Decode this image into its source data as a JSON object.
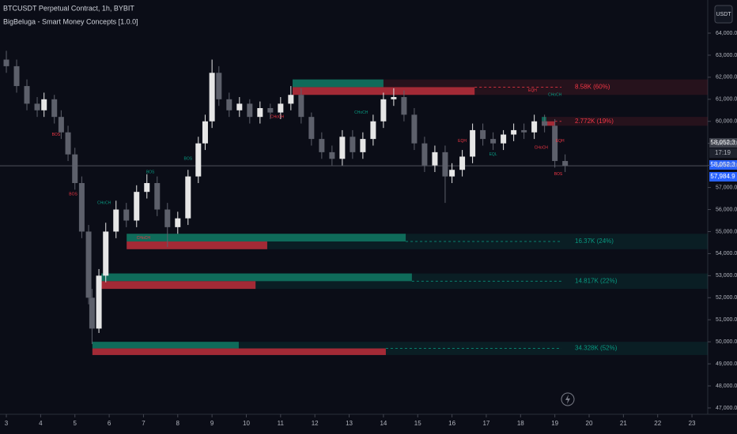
{
  "chart_data": {
    "type": "candlestick",
    "title": "BTCUSDT Perpetual Contract, 1h, BYBIT",
    "subtitle": "BigBeluga - Smart Money Concepts [1.0.0]",
    "currency_button": "USDT",
    "xlim": [
      2.815,
      23.46
    ],
    "xticks": [
      3,
      4,
      5,
      6,
      7,
      8,
      9,
      10,
      11,
      12,
      13,
      14,
      15,
      16,
      17,
      18,
      19,
      20,
      21,
      22,
      23
    ],
    "ylim": [
      46713,
      65503
    ],
    "yticks": [
      {
        "value": 47000,
        "label": "47,000.0"
      },
      {
        "value": 48000,
        "label": "48,000.0"
      },
      {
        "value": 49000,
        "label": "49,000.0"
      },
      {
        "value": 50000,
        "label": "50,000.0"
      },
      {
        "value": 51000,
        "label": "51,000.0"
      },
      {
        "value": 52000,
        "label": "52,000.0"
      },
      {
        "value": 53000,
        "label": "53,000.0"
      },
      {
        "value": 54000,
        "label": "54,000.0"
      },
      {
        "value": 55000,
        "label": "55,000.0"
      },
      {
        "value": 56000,
        "label": "56,000.0"
      },
      {
        "value": 57000,
        "label": "57,000.0"
      },
      {
        "value": 58000,
        "label": "58,000.0"
      },
      {
        "value": 59000,
        "label": "59,000.0"
      },
      {
        "value": 60000,
        "label": "60,000.0"
      },
      {
        "value": 61000,
        "label": "61,000.0"
      },
      {
        "value": 62000,
        "label": "62,000.0"
      },
      {
        "value": 63000,
        "label": "63,000.0"
      },
      {
        "value": 64000,
        "label": "64,000.0"
      }
    ],
    "up_color": "#e6e6e6",
    "down_color": "#5d606b",
    "candles": {
      "x": [
        3.0,
        3.3,
        3.6,
        3.9,
        4.1,
        4.4,
        4.6,
        4.8,
        5.0,
        5.2,
        5.4,
        5.5,
        5.7,
        5.9,
        6.2,
        6.5,
        6.8,
        7.1,
        7.4,
        7.7,
        8.0,
        8.3,
        8.6,
        8.8,
        9.0,
        9.2,
        9.5,
        9.8,
        10.1,
        10.4,
        10.7,
        11.0,
        11.3,
        11.6,
        11.9,
        12.2,
        12.5,
        12.8,
        13.1,
        13.4,
        13.7,
        14.0,
        14.3,
        14.6,
        14.9,
        15.2,
        15.5,
        15.8,
        16.0,
        16.3,
        16.6,
        16.9,
        17.2,
        17.5,
        17.8,
        18.1,
        18.4,
        18.7,
        19.0,
        19.3
      ],
      "open": [
        62800,
        62500,
        61600,
        60800,
        60500,
        61000,
        60200,
        59500,
        58500,
        57200,
        55000,
        52000,
        50600,
        53000,
        55000,
        56000,
        55500,
        56800,
        57200,
        56000,
        55200,
        55600,
        57500,
        59000,
        60000,
        62200,
        61000,
        60500,
        60800,
        60200,
        60600,
        60400,
        60800,
        61200,
        60200,
        59200,
        58600,
        58300,
        59300,
        58600,
        59200,
        60000,
        61000,
        61100,
        60300,
        59000,
        58000,
        58600,
        57500,
        57800,
        58400,
        59600,
        59200,
        59000,
        59400,
        59600,
        59500,
        60000,
        59800,
        58200
      ],
      "high": [
        63200,
        62800,
        61900,
        61100,
        61300,
        61200,
        60500,
        59800,
        58800,
        57500,
        55300,
        52400,
        53300,
        55400,
        56400,
        56300,
        57100,
        57600,
        57500,
        56300,
        55900,
        57800,
        59300,
        60300,
        62800,
        62500,
        61300,
        61100,
        61000,
        60900,
        60800,
        61100,
        61600,
        61500,
        60400,
        59500,
        58900,
        59600,
        59600,
        59500,
        60300,
        61300,
        61500,
        61400,
        60600,
        59300,
        58900,
        58900,
        58100,
        58700,
        59900,
        59900,
        59500,
        59600,
        59900,
        59900,
        60300,
        60300,
        60100,
        58500
      ],
      "low": [
        62200,
        61300,
        60500,
        60200,
        60200,
        59900,
        59200,
        58200,
        56900,
        54700,
        51700,
        49900,
        50400,
        52700,
        54700,
        55200,
        55200,
        56500,
        55700,
        54300,
        54900,
        55300,
        57200,
        58700,
        59700,
        60700,
        60200,
        60200,
        59900,
        59900,
        60100,
        60100,
        60500,
        59900,
        58900,
        58300,
        58000,
        58000,
        58300,
        58300,
        58900,
        59700,
        60700,
        60000,
        58700,
        57700,
        57700,
        56300,
        57200,
        57500,
        58100,
        58900,
        58700,
        58700,
        59100,
        59200,
        59200,
        59500,
        57900,
        57700
      ],
      "close": [
        62500,
        61600,
        60800,
        60500,
        61000,
        60200,
        59500,
        58500,
        57200,
        55000,
        52000,
        50600,
        53000,
        55000,
        56000,
        55500,
        56800,
        57200,
        56000,
        55200,
        55600,
        57500,
        59000,
        60000,
        62200,
        61000,
        60500,
        60800,
        60200,
        60600,
        60400,
        60800,
        61200,
        60200,
        59200,
        58600,
        58300,
        59300,
        58600,
        59200,
        60000,
        61000,
        61100,
        60300,
        59000,
        58000,
        58600,
        57500,
        57800,
        58400,
        59600,
        59200,
        59000,
        59400,
        59600,
        59500,
        60000,
        59800,
        58200,
        57985
      ]
    },
    "zones": [
      {
        "label": "8.58K (60%)",
        "top": 61900,
        "bottom": 61200,
        "start": 11.35,
        "buy_end": 14.0,
        "sell_end": 16.66,
        "color": "#f23645"
      },
      {
        "label": "2.772K (19%)",
        "top": 60200,
        "bottom": 59800,
        "start": 18.62,
        "buy_end": 18.75,
        "sell_end": 19.0,
        "color": "#f23645"
      },
      {
        "label": "16.37K (24%)",
        "top": 54900,
        "bottom": 54200,
        "start": 6.51,
        "buy_end": 14.65,
        "sell_end": 10.61,
        "color": "#089981"
      },
      {
        "label": "14.817K (22%)",
        "top": 53100,
        "bottom": 52400,
        "start": 5.77,
        "buy_end": 14.83,
        "sell_end": 10.27,
        "color": "#089981"
      },
      {
        "label": "34.328K (52%)",
        "top": 50000,
        "bottom": 49400,
        "start": 5.51,
        "buy_end": 9.78,
        "sell_end": 14.07,
        "color": "#089981"
      }
    ],
    "annotations": [
      {
        "text": "BOS",
        "x": 4.45,
        "y": 59400,
        "color": "#f23645"
      },
      {
        "text": "BOS",
        "x": 4.95,
        "y": 56700,
        "color": "#f23645"
      },
      {
        "text": "CHoCH",
        "x": 5.85,
        "y": 56300,
        "color": "#089981"
      },
      {
        "text": "BOS",
        "x": 7.2,
        "y": 57700,
        "color": "#089981"
      },
      {
        "text": "BOS",
        "x": 8.3,
        "y": 58300,
        "color": "#089981"
      },
      {
        "text": "CHoCH",
        "x": 7.0,
        "y": 54700,
        "color": "#f23645"
      },
      {
        "text": "CHoCH",
        "x": 10.9,
        "y": 60200,
        "color": "#f23645"
      },
      {
        "text": "CHoCH",
        "x": 13.35,
        "y": 60400,
        "color": "#089981"
      },
      {
        "text": "EQH",
        "x": 16.3,
        "y": 59100,
        "color": "#f23645"
      },
      {
        "text": "EQL",
        "x": 17.2,
        "y": 58500,
        "color": "#089981"
      },
      {
        "text": "EQH",
        "x": 18.35,
        "y": 61400,
        "color": "#f23645"
      },
      {
        "text": "CHoCH",
        "x": 19.0,
        "y": 61200,
        "color": "#089981"
      },
      {
        "text": "CHoCH",
        "x": 18.6,
        "y": 58800,
        "color": "#f23645"
      },
      {
        "text": "EQH",
        "x": 19.15,
        "y": 59100,
        "color": "#f23645"
      },
      {
        "text": "BOS",
        "x": 19.1,
        "y": 57600,
        "color": "#f23645"
      }
    ],
    "price_tags": [
      "58,052.3",
      "17:19",
      "58,052.3"
    ],
    "last_price": 57984.9,
    "last_price_label": "57,984.9"
  }
}
